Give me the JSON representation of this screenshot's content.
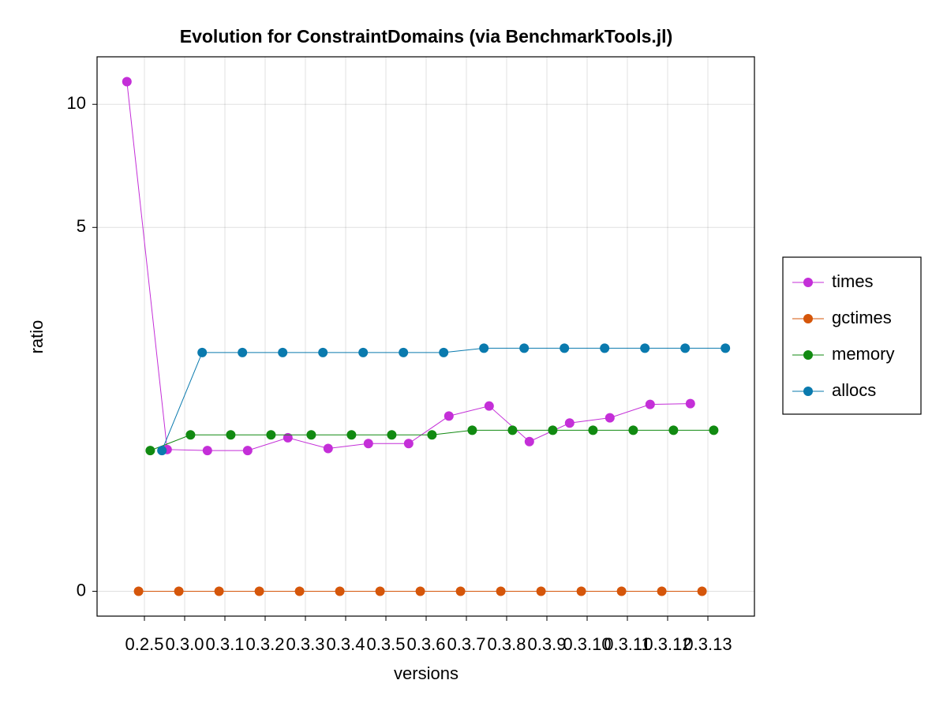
{
  "chart_data": {
    "type": "line",
    "title": "Evolution for ConstraintDomains (via BenchmarkTools.jl)",
    "xlabel": "versions",
    "ylabel": "ratio",
    "categories": [
      "0.2.5",
      "0.3.0",
      "0.3.1",
      "0.3.2",
      "0.3.3",
      "0.3.4",
      "0.3.5",
      "0.3.6",
      "0.3.7",
      "0.3.8",
      "0.3.9",
      "0.3.10",
      "0.3.11",
      "0.3.12",
      "0.3.13"
    ],
    "series": [
      {
        "name": "times",
        "color": "#c42fd8",
        "values": [
          11.3,
          1.01,
          1.0,
          1.0,
          1.13,
          1.02,
          1.07,
          1.07,
          1.37,
          1.49,
          1.09,
          1.29,
          1.35,
          1.51,
          1.52
        ]
      },
      {
        "name": "gctimes",
        "color": "#d5560a",
        "values": [
          0,
          0,
          0,
          0,
          0,
          0,
          0,
          0,
          0,
          0,
          0,
          0,
          0,
          0,
          0
        ]
      },
      {
        "name": "memory",
        "color": "#118a11",
        "values": [
          1.0,
          1.16,
          1.16,
          1.16,
          1.16,
          1.16,
          1.16,
          1.16,
          1.21,
          1.21,
          1.21,
          1.21,
          1.21,
          1.21,
          1.21
        ]
      },
      {
        "name": "allocs",
        "color": "#0a7aae",
        "values": [
          1.0,
          2.24,
          2.24,
          2.24,
          2.24,
          2.24,
          2.24,
          2.24,
          2.31,
          2.31,
          2.31,
          2.31,
          2.31,
          2.31,
          2.31
        ]
      }
    ],
    "ylim": [
      -0.13,
      12.9
    ],
    "yticks": [
      0,
      5,
      10
    ],
    "yscale": "pseudolog10",
    "grid": true,
    "legend": "right"
  }
}
